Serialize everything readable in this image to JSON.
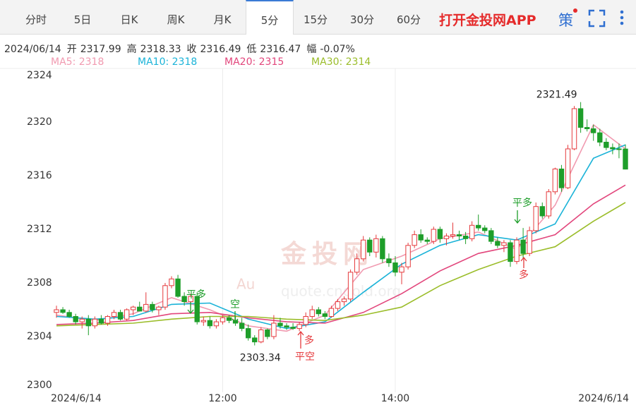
{
  "tabs": [
    "分时",
    "5日",
    "日K",
    "周K",
    "月K",
    "5分",
    "15分",
    "30分",
    "60分"
  ],
  "selected_tab": 5,
  "brand": "打开金投网APP",
  "strategy_icon": "策",
  "info": {
    "date": "2024/06/14",
    "open_label": "开",
    "open": 2317.99,
    "high_label": "高",
    "high": 2318.33,
    "close_label": "收",
    "close": 2316.49,
    "low_label": "低",
    "low": 2316.47,
    "change_label": "幅",
    "change": "-0.07%"
  },
  "chart_data": {
    "type": "candlestick",
    "watermark": "金投网",
    "watermark_url": "quote.cngold.org",
    "watermark_logo": "Au",
    "up_color": "#e5393c",
    "down_color": "#1e9e2a",
    "ylim": [
      2300,
      2324
    ],
    "yticks": [
      2300,
      2304,
      2308,
      2312,
      2316,
      2320,
      2324
    ],
    "categories": [
      "2024/6/14",
      null,
      null,
      null,
      null,
      null,
      null,
      null,
      null,
      null,
      null,
      null,
      null,
      null,
      null,
      null,
      null,
      null,
      null,
      null,
      null,
      null,
      null,
      null,
      null,
      null,
      "12:00",
      null,
      null,
      null,
      null,
      null,
      null,
      null,
      null,
      null,
      null,
      null,
      null,
      null,
      null,
      null,
      null,
      null,
      null,
      null,
      null,
      null,
      null,
      null,
      null,
      null,
      null,
      "14:00",
      null,
      null,
      null,
      null,
      null,
      null,
      null,
      null,
      null,
      null,
      null,
      null,
      null,
      null,
      null,
      null,
      null,
      null,
      null,
      null,
      null,
      null,
      null,
      null,
      null,
      null,
      null,
      null,
      null,
      null,
      null,
      null,
      null,
      null,
      null,
      "2024/6/14"
    ],
    "ohlc": [
      [
        2305.8,
        2306.3,
        2305.4,
        2306.0
      ],
      [
        2306.0,
        2306.2,
        2305.7,
        2305.8
      ],
      [
        2305.8,
        2306.0,
        2305.4,
        2305.5
      ],
      [
        2305.5,
        2305.7,
        2304.9,
        2305.1
      ],
      [
        2305.1,
        2305.5,
        2304.6,
        2305.3
      ],
      [
        2305.3,
        2305.6,
        2304.1,
        2304.8
      ],
      [
        2304.8,
        2305.5,
        2304.6,
        2305.3
      ],
      [
        2305.3,
        2305.6,
        2304.9,
        2305.0
      ],
      [
        2305.0,
        2305.6,
        2304.8,
        2305.5
      ],
      [
        2305.5,
        2306.0,
        2305.3,
        2305.8
      ],
      [
        2305.8,
        2306.0,
        2305.2,
        2305.3
      ],
      [
        2305.3,
        2306.1,
        2305.2,
        2306.0
      ],
      [
        2306.0,
        2306.3,
        2305.6,
        2306.2
      ],
      [
        2306.2,
        2306.6,
        2305.9,
        2305.9
      ],
      [
        2305.9,
        2307.3,
        2305.8,
        2306.4
      ],
      [
        2306.4,
        2306.6,
        2305.8,
        2306.0
      ],
      [
        2306.0,
        2306.3,
        2305.6,
        2306.2
      ],
      [
        2306.2,
        2308.0,
        2306.0,
        2307.8
      ],
      [
        2307.8,
        2308.5,
        2307.6,
        2308.3
      ],
      [
        2308.3,
        2308.6,
        2306.9,
        2307.0
      ],
      [
        2307.0,
        2307.3,
        2306.3,
        2306.6
      ],
      [
        2306.6,
        2307.2,
        2306.3,
        2307.0
      ],
      [
        2307.0,
        2307.3,
        2304.9,
        2305.1
      ],
      [
        2305.1,
        2305.5,
        2304.8,
        2305.2
      ],
      [
        2305.2,
        2305.5,
        2304.6,
        2304.8
      ],
      [
        2304.8,
        2305.3,
        2304.6,
        2305.1
      ],
      [
        2305.1,
        2305.6,
        2304.9,
        2305.4
      ],
      [
        2305.4,
        2305.6,
        2305.0,
        2305.2
      ],
      [
        2305.2,
        2305.5,
        2304.8,
        2305.0
      ],
      [
        2305.0,
        2305.4,
        2304.4,
        2304.6
      ],
      [
        2304.6,
        2304.9,
        2303.7,
        2303.9
      ],
      [
        2303.9,
        2304.1,
        2303.34,
        2303.6
      ],
      [
        2303.6,
        2304.7,
        2303.5,
        2304.5
      ],
      [
        2304.5,
        2304.6,
        2303.8,
        2304.0
      ],
      [
        2304.0,
        2305.6,
        2303.8,
        2305.0
      ],
      [
        2305.0,
        2305.4,
        2304.6,
        2304.8
      ],
      [
        2304.8,
        2305.0,
        2304.5,
        2304.7
      ],
      [
        2304.7,
        2305.0,
        2304.5,
        2304.6
      ],
      [
        2304.6,
        2305.1,
        2304.4,
        2304.9
      ],
      [
        2304.9,
        2305.8,
        2304.7,
        2305.5
      ],
      [
        2305.5,
        2306.3,
        2305.3,
        2306.0
      ],
      [
        2306.0,
        2306.2,
        2305.5,
        2305.7
      ],
      [
        2305.7,
        2305.9,
        2305.3,
        2305.5
      ],
      [
        2305.5,
        2306.3,
        2305.4,
        2306.1
      ],
      [
        2306.1,
        2306.8,
        2305.9,
        2306.6
      ],
      [
        2306.6,
        2307.0,
        2306.3,
        2306.8
      ],
      [
        2306.8,
        2309.0,
        2306.6,
        2308.8
      ],
      [
        2308.8,
        2310.2,
        2308.6,
        2309.8
      ],
      [
        2309.8,
        2311.5,
        2309.6,
        2311.2
      ],
      [
        2311.2,
        2311.4,
        2310.0,
        2310.3
      ],
      [
        2310.3,
        2311.6,
        2309.9,
        2311.3
      ],
      [
        2311.3,
        2311.5,
        2309.5,
        2309.8
      ],
      [
        2309.8,
        2310.2,
        2309.2,
        2309.5
      ],
      [
        2309.5,
        2310.0,
        2308.5,
        2308.8
      ],
      [
        2308.8,
        2309.5,
        2307.9,
        2309.2
      ],
      [
        2309.2,
        2311.0,
        2309.0,
        2310.8
      ],
      [
        2310.8,
        2311.9,
        2310.6,
        2311.6
      ],
      [
        2311.6,
        2312.0,
        2311.0,
        2311.2
      ],
      [
        2311.2,
        2311.4,
        2310.9,
        2311.1
      ],
      [
        2311.1,
        2312.2,
        2310.9,
        2312.0
      ],
      [
        2312.0,
        2312.2,
        2311.0,
        2311.3
      ],
      [
        2311.3,
        2311.7,
        2310.8,
        2311.5
      ],
      [
        2311.5,
        2312.5,
        2311.3,
        2311.6
      ],
      [
        2311.6,
        2311.9,
        2311.2,
        2311.5
      ],
      [
        2311.5,
        2311.8,
        2310.9,
        2311.3
      ],
      [
        2311.3,
        2312.6,
        2311.1,
        2312.3
      ],
      [
        2312.3,
        2313.1,
        2311.9,
        2312.1
      ],
      [
        2312.1,
        2312.3,
        2311.7,
        2311.9
      ],
      [
        2311.9,
        2312.1,
        2310.9,
        2311.1
      ],
      [
        2311.1,
        2311.4,
        2310.6,
        2310.8
      ],
      [
        2310.8,
        2311.2,
        2310.3,
        2311.0
      ],
      [
        2311.0,
        2311.2,
        2309.2,
        2309.6
      ],
      [
        2309.6,
        2311.4,
        2309.4,
        2311.2
      ],
      [
        2311.2,
        2312.1,
        2309.8,
        2310.2
      ],
      [
        2310.2,
        2312.2,
        2310.0,
        2311.9
      ],
      [
        2311.9,
        2314.0,
        2311.7,
        2313.7
      ],
      [
        2313.7,
        2314.0,
        2312.8,
        2313.0
      ],
      [
        2313.0,
        2315.0,
        2312.8,
        2314.8
      ],
      [
        2314.8,
        2316.6,
        2314.6,
        2316.5
      ],
      [
        2316.5,
        2316.8,
        2314.8,
        2315.1
      ],
      [
        2315.1,
        2318.3,
        2315.0,
        2318.0
      ],
      [
        2318.0,
        2321.2,
        2317.9,
        2321.0
      ],
      [
        2321.0,
        2321.49,
        2319.2,
        2319.6
      ],
      [
        2319.6,
        2320.2,
        2319.3,
        2319.5
      ],
      [
        2319.5,
        2319.8,
        2318.6,
        2319.2
      ],
      [
        2319.2,
        2319.5,
        2318.2,
        2318.5
      ],
      [
        2318.5,
        2318.8,
        2317.9,
        2318.1
      ],
      [
        2318.1,
        2318.4,
        2317.6,
        2318.0
      ],
      [
        2318.0,
        2318.4,
        2317.3,
        2317.99
      ],
      [
        2317.99,
        2318.33,
        2316.47,
        2316.49
      ]
    ],
    "max_label": 2321.49,
    "min_label": 2303.34,
    "signals": [
      "平多",
      "空",
      "多",
      "平空",
      "平多",
      "多"
    ],
    "series": [
      {
        "name": "MA5",
        "legend": "MA5: 2318",
        "color": "#f19ab0",
        "x": [
          0,
          6,
          12,
          18,
          24,
          30,
          36,
          42,
          48,
          54,
          60,
          66,
          72,
          78,
          84,
          89
        ],
        "values": [
          2305.6,
          2305.2,
          2305.7,
          2306.9,
          2306.0,
          2304.8,
          2304.4,
          2305.6,
          2309.0,
          2310.0,
          2311.3,
          2311.8,
          2310.5,
          2313.8,
          2319.8,
          2318.0
        ]
      },
      {
        "name": "MA10",
        "legend": "MA10: 2318",
        "color": "#1ab3d8",
        "x": [
          0,
          6,
          12,
          18,
          24,
          30,
          36,
          42,
          48,
          54,
          60,
          66,
          72,
          78,
          84,
          89
        ],
        "values": [
          2305.5,
          2305.3,
          2305.5,
          2306.4,
          2306.5,
          2305.3,
          2304.6,
          2305.1,
          2307.3,
          2309.4,
          2310.8,
          2311.6,
          2311.2,
          2312.4,
          2317.3,
          2318.3
        ]
      },
      {
        "name": "MA20",
        "legend": "MA20: 2315",
        "color": "#e2467c",
        "x": [
          0,
          6,
          12,
          18,
          24,
          30,
          36,
          42,
          48,
          54,
          60,
          66,
          72,
          78,
          84,
          89
        ],
        "values": [
          2304.9,
          2305.0,
          2305.2,
          2305.7,
          2305.8,
          2305.4,
          2305.1,
          2305.0,
          2305.8,
          2307.2,
          2308.9,
          2310.2,
          2310.8,
          2311.6,
          2313.9,
          2315.3
        ]
      },
      {
        "name": "MA30",
        "legend": "MA30: 2314",
        "color": "#9bbd2a",
        "x": [
          0,
          6,
          12,
          18,
          24,
          30,
          36,
          42,
          48,
          54,
          60,
          66,
          72,
          78,
          84,
          89
        ],
        "values": [
          2304.8,
          2304.9,
          2305.0,
          2305.3,
          2305.5,
          2305.5,
          2305.3,
          2305.2,
          2305.6,
          2306.2,
          2307.8,
          2309.0,
          2310.0,
          2310.7,
          2312.6,
          2314.0
        ]
      }
    ]
  }
}
